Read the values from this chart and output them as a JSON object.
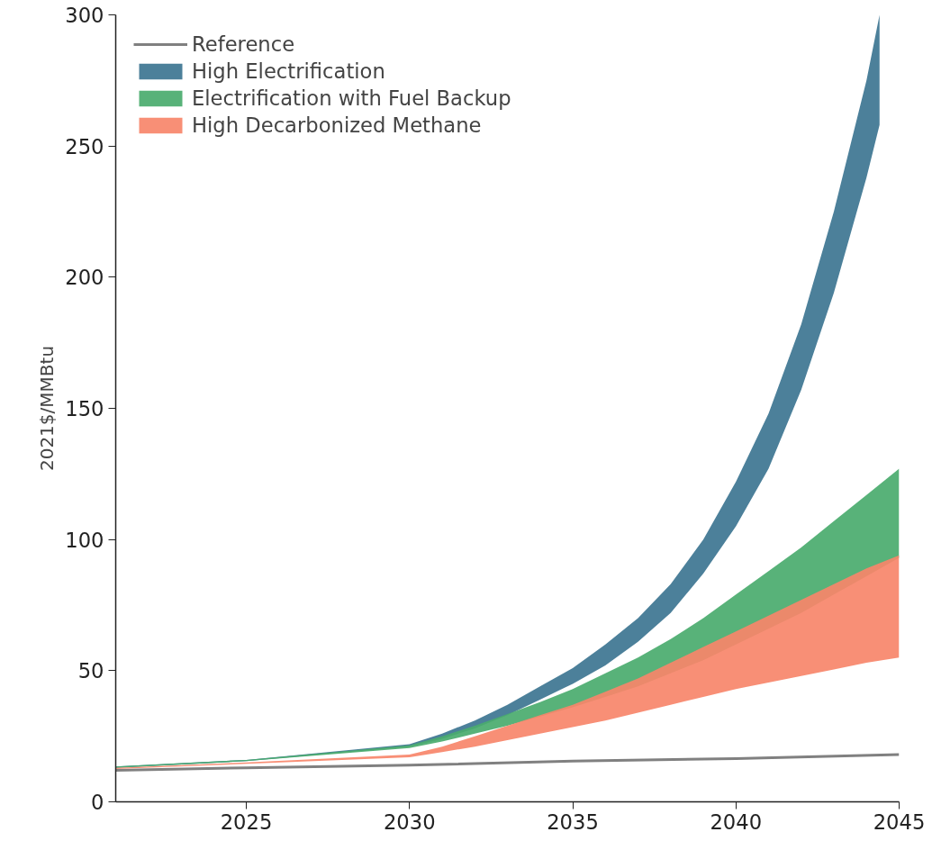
{
  "chart_data": {
    "type": "area",
    "ylabel": "2021$/MMBtu",
    "xlim": [
      2021,
      2045
    ],
    "ylim": [
      0,
      300
    ],
    "xticks": [
      2025,
      2030,
      2035,
      2040,
      2045
    ],
    "yticks": [
      0,
      50,
      100,
      150,
      200,
      250,
      300
    ],
    "grid": false,
    "legend": "top left",
    "series": [
      {
        "name": "Reference",
        "type": "line",
        "color": "#808080",
        "x": [
          2021,
          2025,
          2030,
          2035,
          2040,
          2045
        ],
        "values": [
          12,
          13,
          14,
          15.5,
          16.5,
          18
        ]
      },
      {
        "name": "High Electrification",
        "color": "#3d7591",
        "x": [
          2021,
          2025,
          2030,
          2031,
          2032,
          2033,
          2034,
          2035,
          2036,
          2037,
          2038,
          2039,
          2040,
          2041,
          2042,
          2043,
          2044,
          2044.4
        ],
        "values": [
          null,
          null,
          null,
          null,
          null,
          null,
          null,
          null,
          null,
          null,
          null,
          null,
          null,
          null,
          null,
          null,
          null,
          null
        ],
        "lower": [
          13,
          15.5,
          21,
          24,
          28,
          33,
          39,
          45,
          52,
          61,
          72,
          87,
          105,
          127,
          157,
          194,
          238,
          258
        ],
        "upper": [
          13.5,
          16,
          22,
          26,
          31,
          37,
          44,
          51,
          60,
          70,
          83,
          100,
          122,
          148,
          182,
          225,
          275,
          300
        ]
      },
      {
        "name": "Electrification with Fuel Backup",
        "color": "#4aab6e",
        "x": [
          2021,
          2025,
          2030,
          2031,
          2032,
          2033,
          2034,
          2035,
          2036,
          2037,
          2038,
          2039,
          2040,
          2041,
          2042,
          2043,
          2044,
          2045
        ],
        "values": [
          null,
          null,
          null,
          null,
          null,
          null,
          null,
          null,
          null,
          null,
          null,
          null,
          null,
          null,
          null,
          null,
          null,
          null
        ],
        "lower": [
          13,
          15.5,
          20.5,
          23,
          26,
          29,
          32.5,
          36,
          40,
          44,
          49,
          54,
          60,
          66,
          72,
          79,
          86,
          93
        ],
        "upper": [
          13.5,
          16,
          21.5,
          25,
          29,
          33.5,
          38,
          43,
          49,
          55,
          62,
          70,
          79,
          88,
          97,
          107,
          117,
          127
        ]
      },
      {
        "name": "High Decarbonized Methane",
        "color": "#f7866a",
        "x": [
          2021,
          2025,
          2030,
          2031,
          2032,
          2033,
          2034,
          2035,
          2036,
          2037,
          2038,
          2039,
          2040,
          2041,
          2042,
          2043,
          2044,
          2045
        ],
        "values": [
          null,
          null,
          null,
          null,
          null,
          null,
          null,
          null,
          null,
          null,
          null,
          null,
          null,
          null,
          null,
          null,
          null,
          null
        ],
        "lower": [
          12.5,
          14.5,
          17,
          19,
          21,
          23.5,
          26,
          28.5,
          31,
          34,
          37,
          40,
          43,
          45.5,
          48,
          50.5,
          53,
          55
        ],
        "upper": [
          13,
          15,
          18,
          21,
          25,
          29,
          33,
          37,
          42,
          47,
          53,
          59,
          65,
          71,
          77,
          83,
          89,
          94
        ]
      }
    ]
  }
}
